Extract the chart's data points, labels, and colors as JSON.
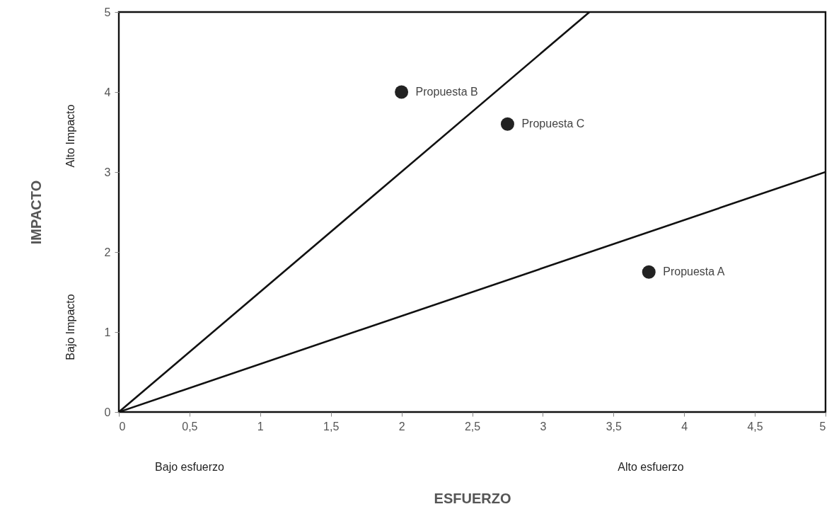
{
  "chart_data": {
    "type": "scatter",
    "xlabel": "ESFUERZO",
    "ylabel": "IMPACTO",
    "xlim": [
      0,
      5
    ],
    "ylim": [
      0,
      5
    ],
    "xticks": [
      0,
      {
        "value": 0.5,
        "label": "0,5"
      },
      1,
      {
        "value": 1.5,
        "label": "1,5"
      },
      2,
      {
        "value": 2.5,
        "label": "2,5"
      },
      3,
      {
        "value": 3.5,
        "label": "3,5"
      },
      4,
      {
        "value": 4.5,
        "label": "4,5"
      },
      5
    ],
    "yticks": [
      0,
      1,
      2,
      3,
      4,
      5
    ],
    "grid": false,
    "line_style": "solid",
    "annotations": [
      "Alto Impacto",
      "Bajo Impacto",
      "Bajo esfuerzo",
      "Alto esfuerzo"
    ],
    "series": [
      {
        "type": "line",
        "color": "#111111",
        "x": [
          0,
          3.33
        ],
        "values": [
          0,
          5
        ]
      },
      {
        "type": "line",
        "color": "#111111",
        "x": [
          0,
          5
        ],
        "values": [
          0,
          3
        ]
      },
      {
        "name": "Propuesta A",
        "color": "#222222",
        "marker": "circle",
        "x": [
          3.75
        ],
        "values": [
          1.75
        ]
      },
      {
        "name": "Propuesta B",
        "color": "#222222",
        "marker": "circle",
        "x": [
          2
        ],
        "values": [
          4
        ]
      },
      {
        "name": "Propuesta C",
        "color": "#222222",
        "marker": "circle",
        "x": [
          2.75
        ],
        "values": [
          3.6
        ]
      }
    ]
  }
}
